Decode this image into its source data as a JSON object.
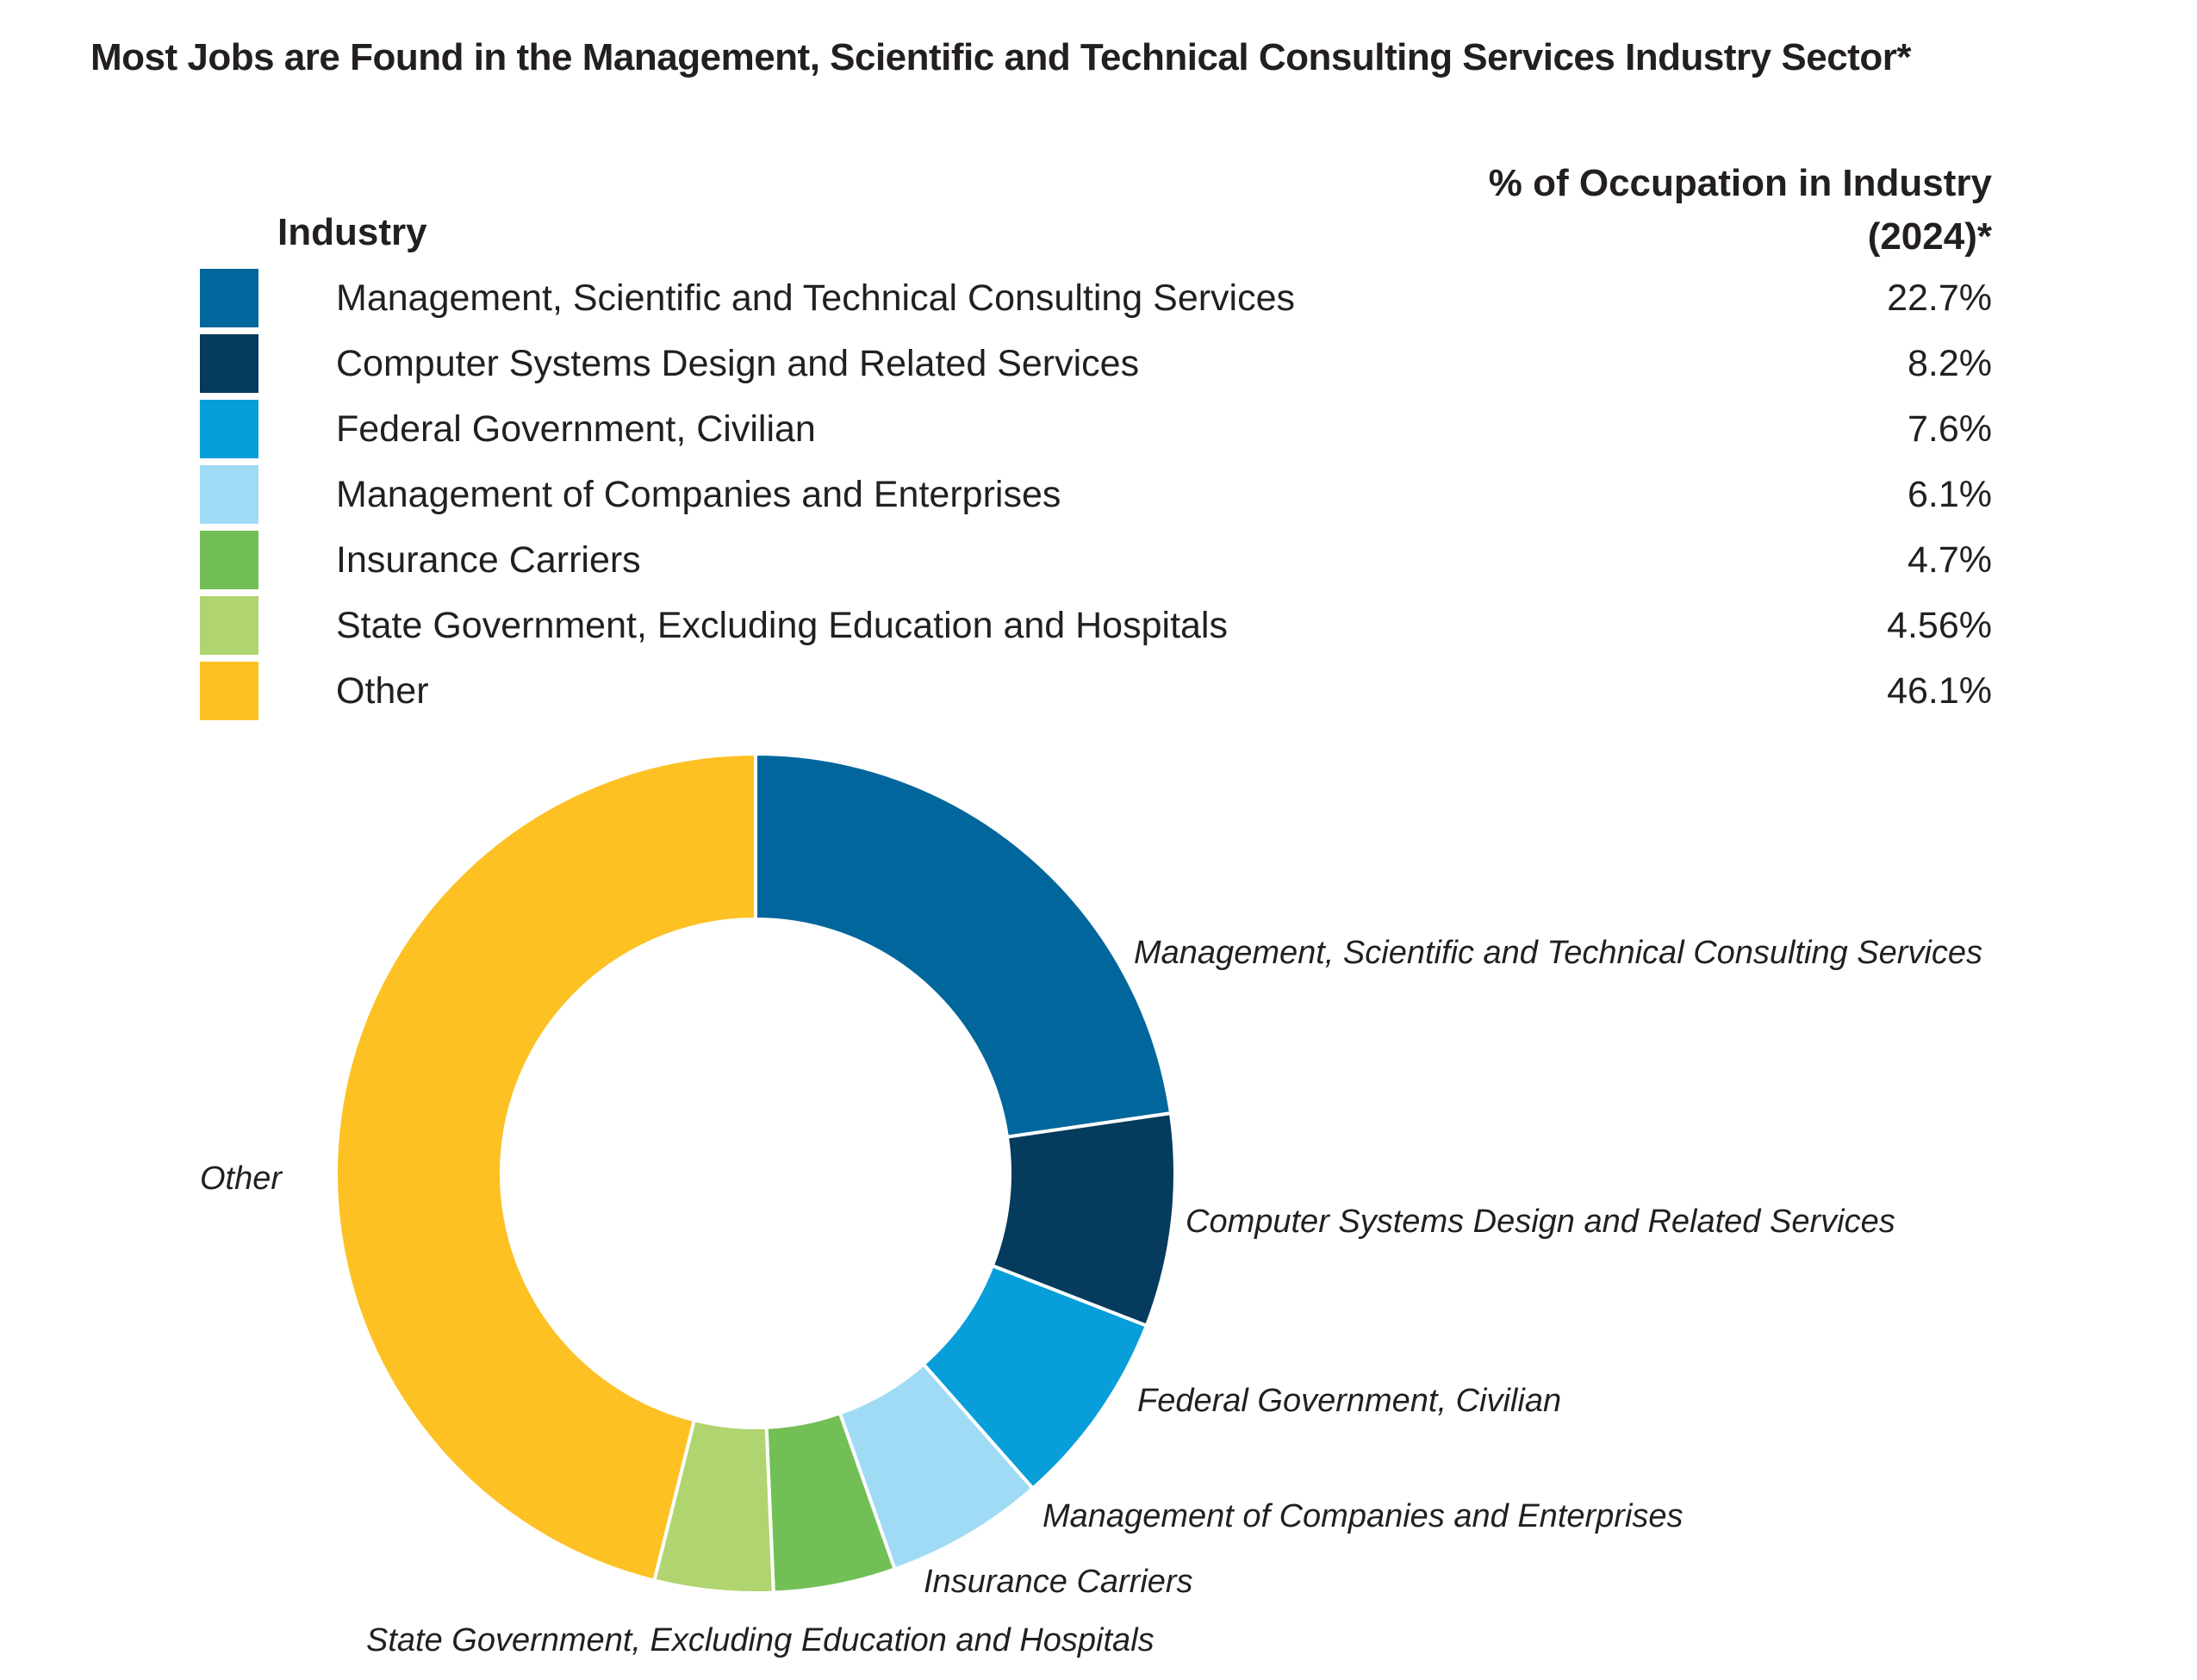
{
  "title": "Most Jobs are Found in the Management, Scientific and Technical Consulting Services Industry Sector*",
  "table": {
    "col_industry": "Industry",
    "col_percent_line1": "% of Occupation in Industry",
    "col_percent_line2": "(2024)*"
  },
  "chart_data": {
    "type": "pie",
    "variant": "donut",
    "title": "Most Jobs are Found in the Management, Scientific and Technical Consulting Services Industry Sector*",
    "legend_title": "Industry",
    "value_header": "% of Occupation in Industry (2024)*",
    "start_angle": "12 o'clock",
    "direction": "clockwise",
    "categories": [
      "Management, Scientific and Technical Consulting Services",
      "Computer Systems Design and Related Services",
      "Federal Government, Civilian",
      "Management of Companies and Enterprises",
      "Insurance Carriers",
      "State Government, Excluding Education and Hospitals",
      "Other"
    ],
    "values": [
      22.7,
      8.2,
      7.6,
      6.1,
      4.7,
      4.56,
      46.1
    ],
    "value_labels": [
      "22.7%",
      "8.2%",
      "7.6%",
      "6.1%",
      "4.7%",
      "4.56%",
      "46.1%"
    ],
    "colors": [
      "#00669b",
      "#053b5c",
      "#089ed9",
      "#a0dbf6",
      "#72bf55",
      "#b0d46f",
      "#fdc124"
    ],
    "legend_placement": "top"
  }
}
